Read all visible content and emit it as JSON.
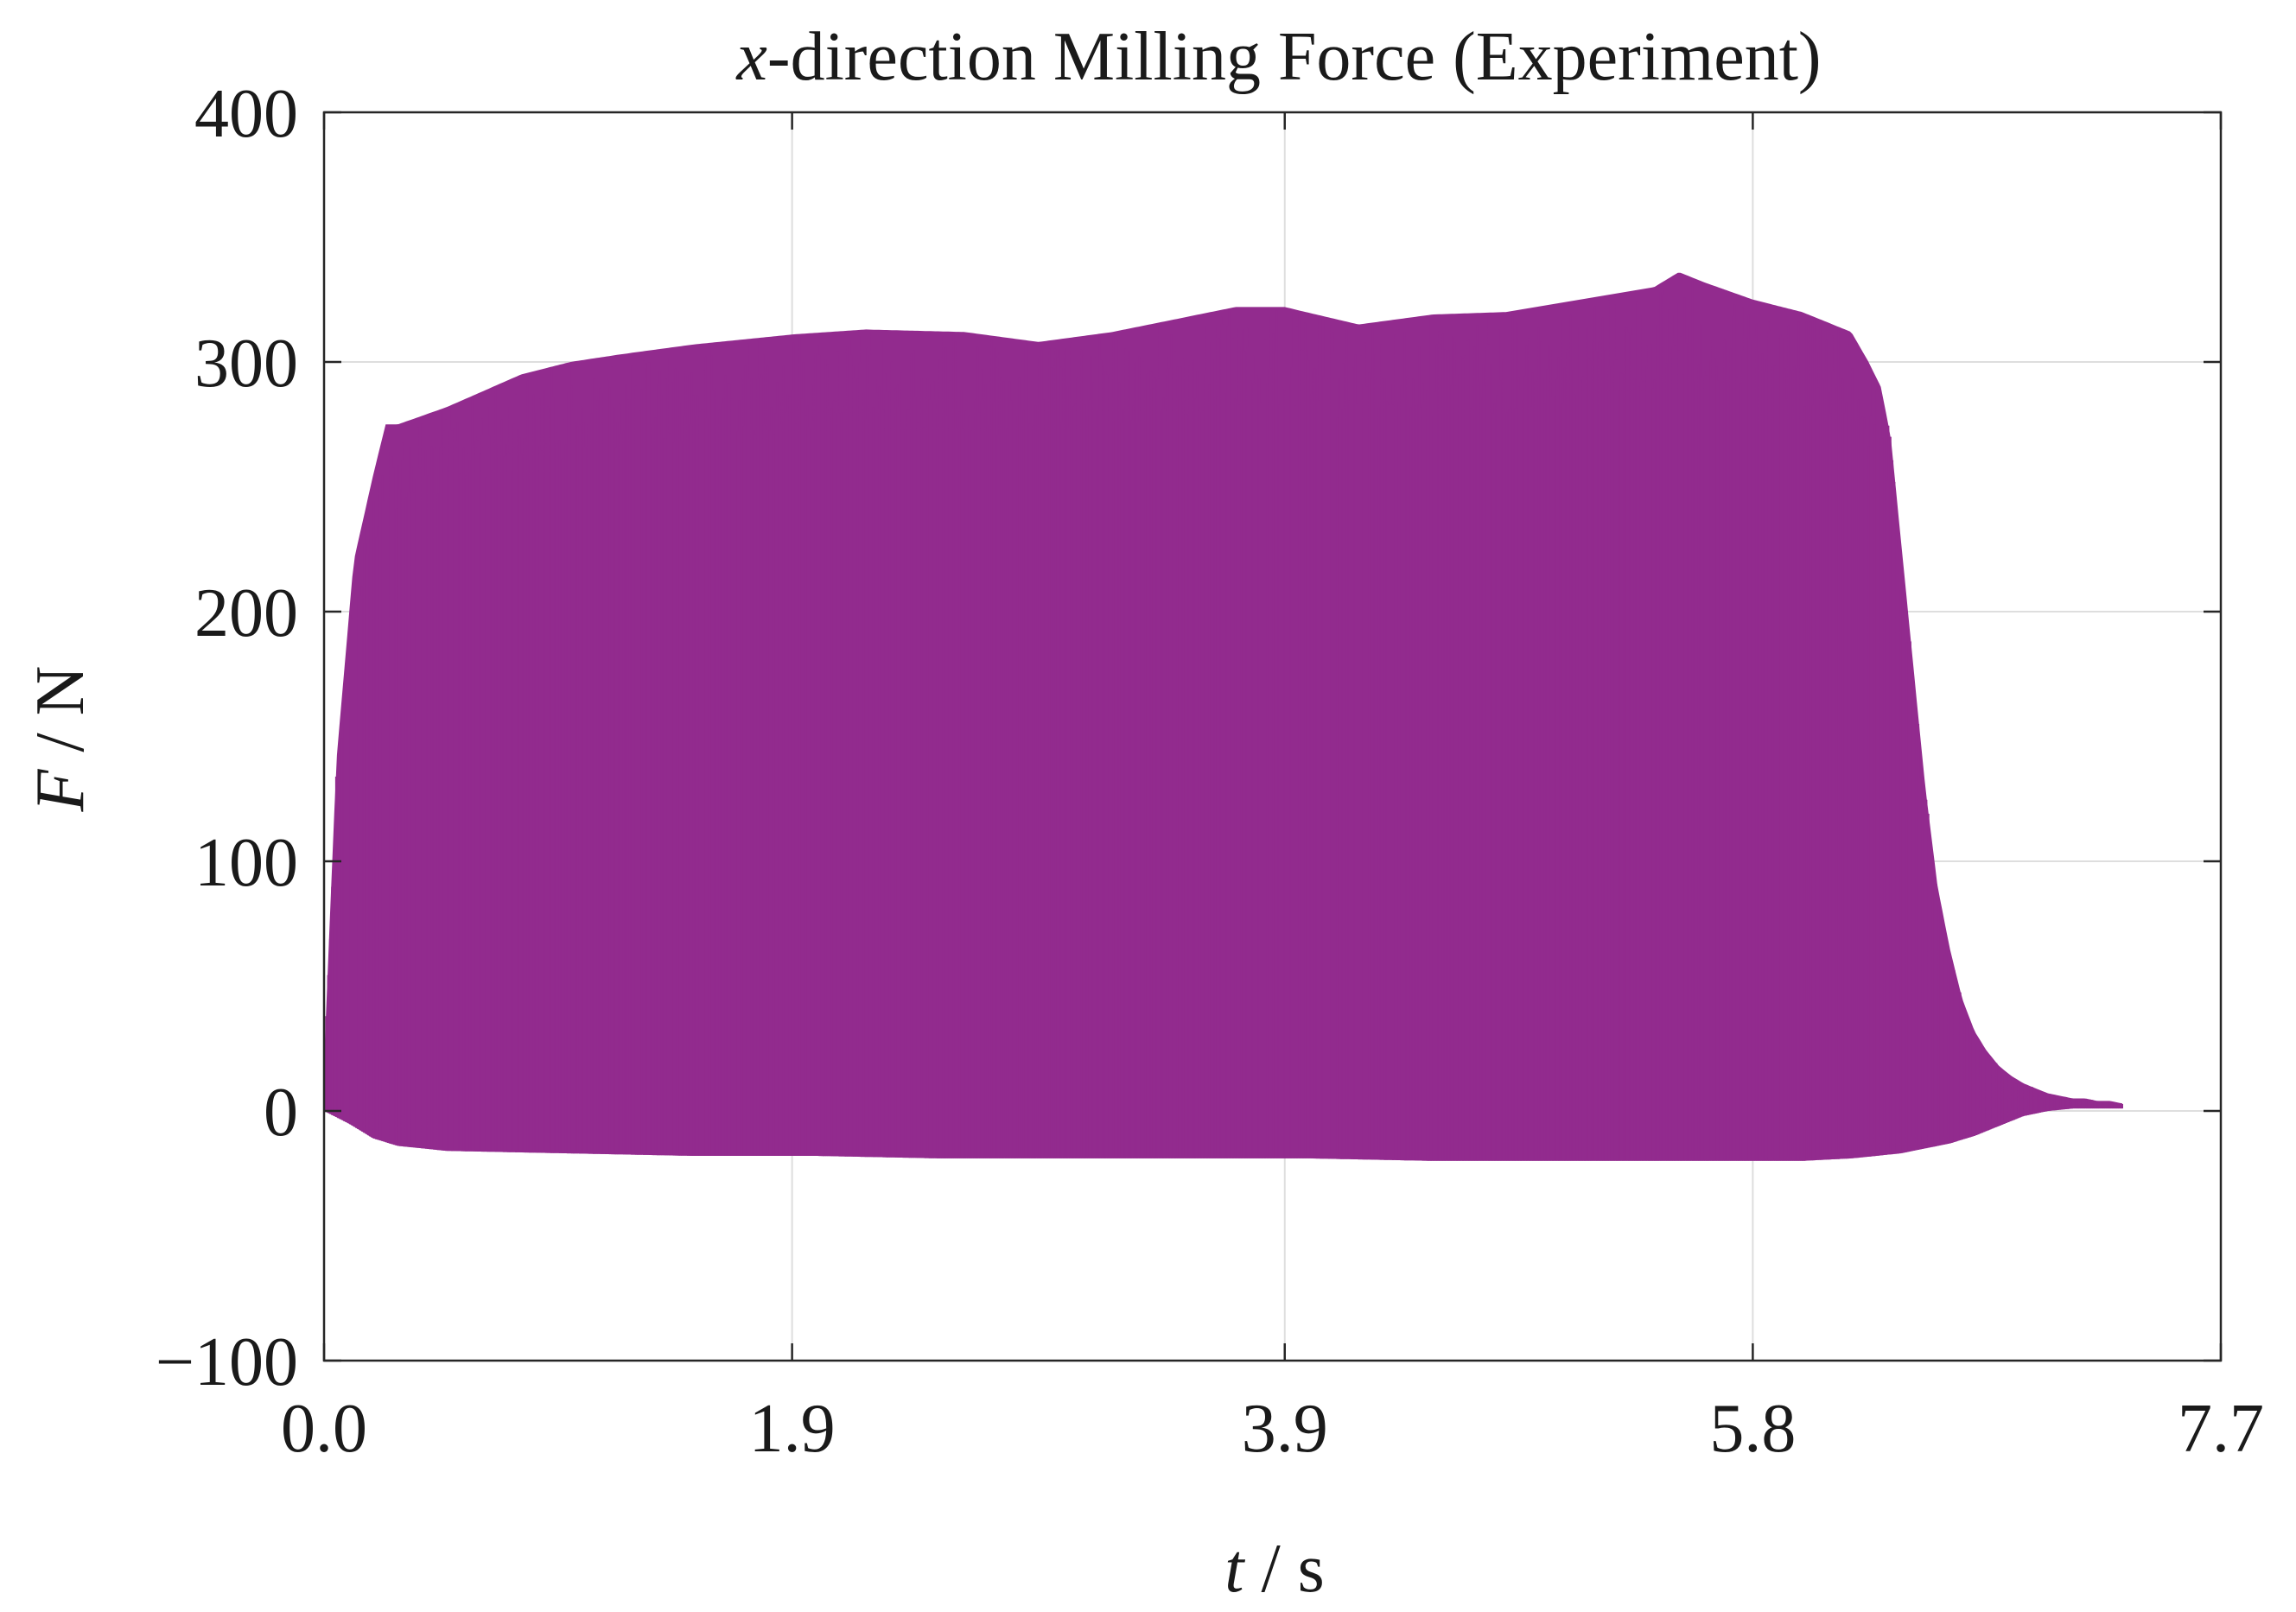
{
  "chart_data": {
    "type": "area",
    "title_italic": "x",
    "title_rest": "-direction Milling Force (Experiment)",
    "xlabel_var": "t",
    "xlabel_unit": " / s",
    "ylabel_var": "F",
    "ylabel_unit": " / N",
    "xlim": [
      0.0,
      7.7
    ],
    "ylim": [
      -100,
      400
    ],
    "xticks": [
      0.0,
      1.9,
      3.9,
      5.8,
      7.7
    ],
    "xtick_labels": [
      "0.0",
      "1.9",
      "3.9",
      "5.8",
      "7.7"
    ],
    "yticks": [
      -100,
      0,
      100,
      200,
      300,
      400
    ],
    "ytick_labels": [
      "−100",
      "0",
      "100",
      "200",
      "300",
      "400"
    ],
    "grid": true,
    "series": [
      {
        "color": "#922b8e",
        "upper_envelope": {
          "t": [
            0.0,
            0.05,
            0.12,
            0.2,
            0.25,
            0.3,
            0.5,
            0.8,
            1.0,
            1.2,
            1.5,
            1.9,
            2.2,
            2.6,
            2.9,
            3.2,
            3.5,
            3.7,
            3.9,
            4.2,
            4.5,
            4.8,
            5.1,
            5.4,
            5.5,
            5.6,
            5.8,
            6.0,
            6.2,
            6.27,
            6.32,
            6.36,
            6.4,
            6.45,
            6.5,
            6.55,
            6.6,
            6.65,
            6.7,
            6.75,
            6.8,
            6.85,
            6.9,
            6.95,
            7.0,
            7.05,
            7.1,
            7.15,
            7.2,
            7.25,
            7.3
          ],
          "F": [
            20,
            140,
            220,
            255,
            275,
            275,
            282,
            295,
            300,
            303,
            307,
            311,
            313,
            312,
            308,
            312,
            318,
            322,
            322,
            315,
            319,
            320,
            325,
            330,
            336,
            332,
            325,
            320,
            312,
            300,
            290,
            270,
            230,
            180,
            130,
            90,
            65,
            45,
            32,
            24,
            18,
            14,
            11,
            9,
            7,
            6,
            5,
            5,
            4,
            4,
            3
          ]
        },
        "lower_envelope": {
          "t": [
            0.0,
            0.1,
            0.2,
            0.3,
            0.5,
            1.0,
            1.5,
            2.0,
            2.5,
            3.0,
            3.5,
            4.0,
            4.5,
            5.0,
            5.5,
            6.0,
            6.2,
            6.3,
            6.4,
            6.5,
            6.6,
            6.7,
            6.8,
            6.9,
            7.0,
            7.1,
            7.2,
            7.3
          ],
          "F": [
            0,
            -5,
            -11,
            -14,
            -16,
            -17,
            -18,
            -18,
            -19,
            -19,
            -19,
            -19,
            -20,
            -20,
            -20,
            -20,
            -19,
            -18,
            -17,
            -15,
            -13,
            -10,
            -6,
            -2,
            0,
            1,
            1,
            1
          ]
        }
      }
    ]
  }
}
